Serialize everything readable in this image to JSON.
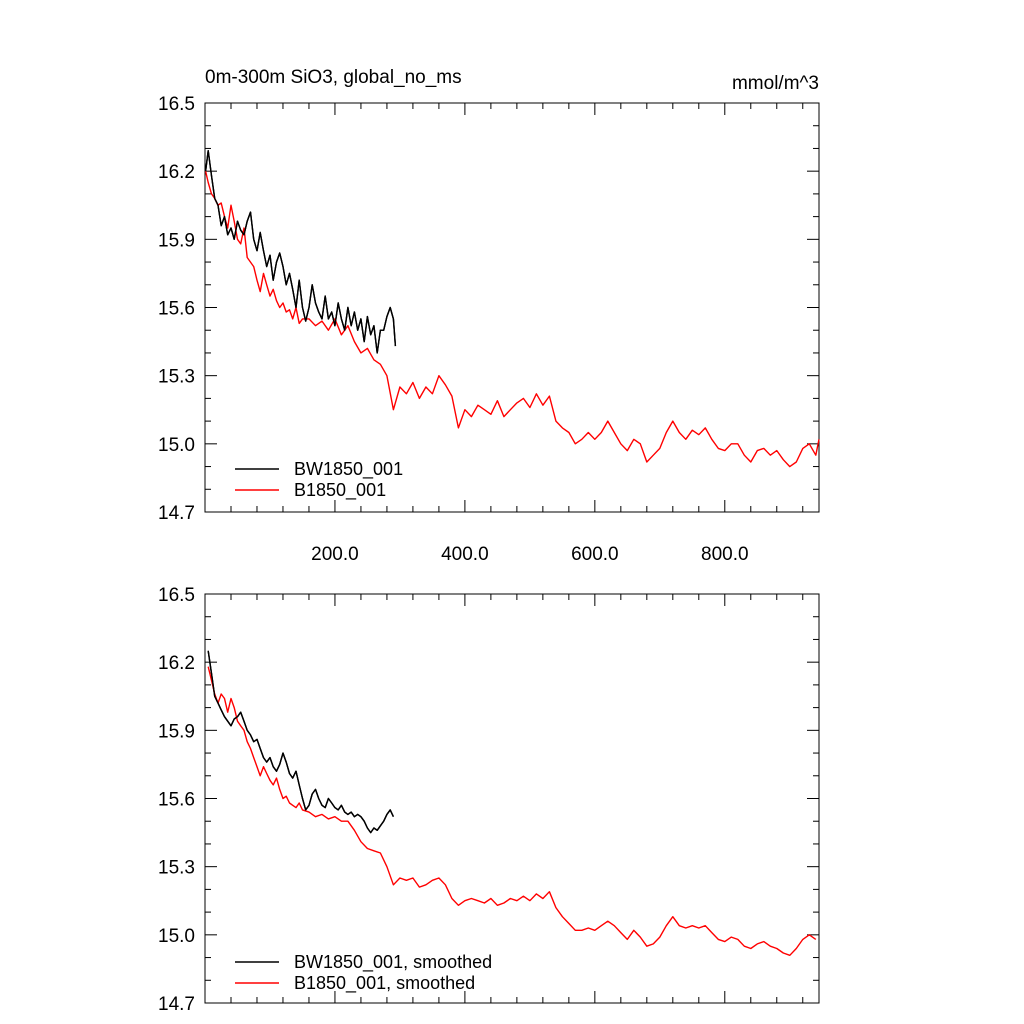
{
  "chart_data": [
    {
      "type": "line",
      "title": "0m-300m SiO3, global_no_ms",
      "units": "mmol/m^3",
      "xlim": [
        0,
        945
      ],
      "ylim": [
        14.7,
        16.5
      ],
      "xticks": [
        200,
        400,
        600,
        800
      ],
      "xtick_labels": [
        "200.0",
        "400.0",
        "600.0",
        "800.0"
      ],
      "yticks": [
        14.7,
        15.0,
        15.3,
        15.6,
        15.9,
        16.2,
        16.5
      ],
      "ytick_labels": [
        "14.7",
        "15.0",
        "15.3",
        "15.6",
        "15.9",
        "16.2",
        "16.5"
      ],
      "grid": false,
      "legend_position": "bottom-left",
      "series": [
        {
          "name": "BW1850_001",
          "color": "#000000",
          "x": [
            1,
            5,
            10,
            15,
            20,
            25,
            30,
            35,
            40,
            45,
            50,
            55,
            60,
            65,
            70,
            75,
            80,
            85,
            90,
            95,
            100,
            105,
            110,
            115,
            120,
            125,
            130,
            135,
            140,
            145,
            150,
            155,
            160,
            165,
            170,
            175,
            180,
            185,
            190,
            195,
            200,
            205,
            210,
            215,
            220,
            225,
            230,
            235,
            240,
            245,
            250,
            255,
            260,
            265,
            270,
            275,
            280,
            285,
            290,
            293
          ],
          "y": [
            16.2,
            16.29,
            16.18,
            16.08,
            16.05,
            15.96,
            16.0,
            15.92,
            15.95,
            15.9,
            15.98,
            15.94,
            15.92,
            15.98,
            16.02,
            15.9,
            15.85,
            15.93,
            15.85,
            15.78,
            15.83,
            15.72,
            15.8,
            15.84,
            15.78,
            15.7,
            15.75,
            15.68,
            15.6,
            15.72,
            15.6,
            15.54,
            15.6,
            15.7,
            15.62,
            15.58,
            15.55,
            15.65,
            15.55,
            15.58,
            15.52,
            15.62,
            15.55,
            15.5,
            15.6,
            15.52,
            15.58,
            15.5,
            15.55,
            15.45,
            15.56,
            15.48,
            15.52,
            15.4,
            15.5,
            15.5,
            15.56,
            15.6,
            15.55,
            15.43
          ]
        },
        {
          "name": "B1850_001",
          "color": "#ff0000",
          "x": [
            1,
            5,
            10,
            15,
            20,
            25,
            30,
            35,
            40,
            45,
            50,
            55,
            60,
            65,
            70,
            75,
            80,
            85,
            90,
            95,
            100,
            105,
            110,
            115,
            120,
            125,
            130,
            135,
            140,
            145,
            150,
            160,
            170,
            180,
            190,
            200,
            210,
            220,
            230,
            240,
            250,
            260,
            270,
            280,
            290,
            300,
            310,
            320,
            330,
            340,
            350,
            360,
            370,
            380,
            390,
            400,
            410,
            420,
            430,
            440,
            450,
            460,
            470,
            480,
            490,
            500,
            510,
            520,
            530,
            540,
            550,
            560,
            570,
            580,
            590,
            600,
            610,
            620,
            630,
            640,
            650,
            660,
            670,
            680,
            690,
            700,
            710,
            720,
            730,
            740,
            750,
            760,
            770,
            780,
            790,
            800,
            810,
            820,
            830,
            840,
            850,
            860,
            870,
            880,
            890,
            900,
            910,
            920,
            930,
            940,
            945
          ],
          "y": [
            16.2,
            16.15,
            16.1,
            16.08,
            16.05,
            16.06,
            16.0,
            15.95,
            16.05,
            15.98,
            15.9,
            15.88,
            15.95,
            15.82,
            15.8,
            15.78,
            15.72,
            15.67,
            15.75,
            15.7,
            15.65,
            15.68,
            15.63,
            15.6,
            15.62,
            15.58,
            15.59,
            15.55,
            15.6,
            15.53,
            15.55,
            15.55,
            15.52,
            15.54,
            15.5,
            15.55,
            15.48,
            15.52,
            15.45,
            15.4,
            15.42,
            15.37,
            15.35,
            15.3,
            15.15,
            15.25,
            15.22,
            15.27,
            15.2,
            15.25,
            15.22,
            15.3,
            15.26,
            15.21,
            15.07,
            15.15,
            15.12,
            15.17,
            15.15,
            15.13,
            15.19,
            15.12,
            15.15,
            15.18,
            15.2,
            15.16,
            15.22,
            15.17,
            15.21,
            15.1,
            15.07,
            15.05,
            15.0,
            15.02,
            15.05,
            15.02,
            15.05,
            15.1,
            15.05,
            15.0,
            14.97,
            15.02,
            15.0,
            14.92,
            14.95,
            14.98,
            15.05,
            15.1,
            15.05,
            15.02,
            15.06,
            15.04,
            15.07,
            15.02,
            14.98,
            14.97,
            15.0,
            15.0,
            14.95,
            14.92,
            14.97,
            14.98,
            14.95,
            14.97,
            14.93,
            14.9,
            14.92,
            14.98,
            15.0,
            14.95,
            15.02
          ]
        }
      ]
    },
    {
      "type": "line",
      "xlim": [
        0,
        945
      ],
      "ylim": [
        14.7,
        16.5
      ],
      "xticks": [
        200,
        400,
        600,
        800
      ],
      "yticks": [
        14.7,
        15.0,
        15.3,
        15.6,
        15.9,
        16.2,
        16.5
      ],
      "ytick_labels": [
        "14.7",
        "15.0",
        "15.3",
        "15.6",
        "15.9",
        "16.2",
        "16.5"
      ],
      "grid": false,
      "legend_position": "bottom-left",
      "series": [
        {
          "name": "BW1850_001, smoothed",
          "color": "#000000",
          "x": [
            5,
            10,
            15,
            20,
            25,
            30,
            35,
            40,
            45,
            50,
            55,
            60,
            65,
            70,
            75,
            80,
            85,
            90,
            95,
            100,
            105,
            110,
            115,
            120,
            125,
            130,
            135,
            140,
            145,
            150,
            155,
            160,
            165,
            170,
            175,
            180,
            185,
            190,
            195,
            200,
            205,
            210,
            215,
            220,
            225,
            230,
            235,
            240,
            245,
            250,
            255,
            260,
            265,
            270,
            275,
            280,
            285,
            290
          ],
          "y": [
            16.25,
            16.15,
            16.05,
            16.02,
            15.99,
            15.96,
            15.94,
            15.92,
            15.95,
            15.96,
            15.98,
            15.94,
            15.9,
            15.88,
            15.85,
            15.86,
            15.82,
            15.78,
            15.76,
            15.78,
            15.74,
            15.72,
            15.75,
            15.8,
            15.76,
            15.71,
            15.69,
            15.72,
            15.66,
            15.6,
            15.55,
            15.57,
            15.62,
            15.64,
            15.6,
            15.57,
            15.56,
            15.6,
            15.58,
            15.56,
            15.55,
            15.57,
            15.54,
            15.53,
            15.54,
            15.52,
            15.53,
            15.52,
            15.5,
            15.47,
            15.45,
            15.47,
            15.46,
            15.48,
            15.5,
            15.53,
            15.55,
            15.52
          ]
        },
        {
          "name": "B1850_001, smoothed",
          "color": "#ff0000",
          "x": [
            5,
            10,
            15,
            20,
            25,
            30,
            35,
            40,
            45,
            50,
            55,
            60,
            65,
            70,
            75,
            80,
            85,
            90,
            95,
            100,
            105,
            110,
            115,
            120,
            125,
            130,
            135,
            140,
            145,
            150,
            160,
            170,
            180,
            190,
            200,
            210,
            220,
            230,
            240,
            250,
            260,
            270,
            280,
            290,
            300,
            310,
            320,
            330,
            340,
            350,
            360,
            370,
            380,
            390,
            400,
            410,
            420,
            430,
            440,
            450,
            460,
            470,
            480,
            490,
            500,
            510,
            520,
            530,
            540,
            550,
            560,
            570,
            580,
            590,
            600,
            610,
            620,
            630,
            640,
            650,
            660,
            670,
            680,
            690,
            700,
            710,
            720,
            730,
            740,
            750,
            760,
            770,
            780,
            790,
            800,
            810,
            820,
            830,
            840,
            850,
            860,
            870,
            880,
            890,
            900,
            910,
            920,
            930,
            940
          ],
          "y": [
            16.18,
            16.12,
            16.06,
            16.02,
            16.06,
            16.04,
            15.98,
            16.04,
            16.0,
            15.94,
            15.92,
            15.9,
            15.85,
            15.82,
            15.78,
            15.74,
            15.7,
            15.74,
            15.71,
            15.68,
            15.66,
            15.69,
            15.64,
            15.6,
            15.61,
            15.58,
            15.57,
            15.56,
            15.58,
            15.55,
            15.54,
            15.52,
            15.53,
            15.51,
            15.52,
            15.5,
            15.5,
            15.46,
            15.41,
            15.38,
            15.37,
            15.36,
            15.3,
            15.22,
            15.25,
            15.24,
            15.25,
            15.21,
            15.22,
            15.24,
            15.25,
            15.22,
            15.16,
            15.13,
            15.15,
            15.16,
            15.15,
            15.14,
            15.16,
            15.13,
            15.14,
            15.16,
            15.15,
            15.17,
            15.15,
            15.18,
            15.16,
            15.19,
            15.12,
            15.08,
            15.05,
            15.02,
            15.02,
            15.03,
            15.02,
            15.04,
            15.06,
            15.04,
            15.01,
            14.98,
            15.02,
            14.99,
            14.95,
            14.96,
            14.99,
            15.04,
            15.08,
            15.04,
            15.03,
            15.04,
            15.03,
            15.04,
            15.01,
            14.98,
            14.97,
            14.99,
            14.98,
            14.95,
            14.94,
            14.96,
            14.97,
            14.95,
            14.94,
            14.92,
            14.91,
            14.94,
            14.98,
            15.0,
            14.98
          ]
        }
      ]
    }
  ]
}
